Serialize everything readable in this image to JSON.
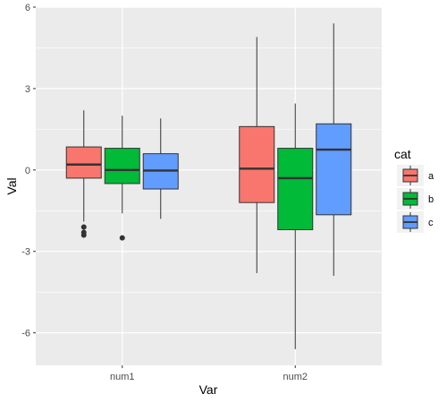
{
  "chart_data": {
    "type": "boxplot",
    "xlabel": "Var",
    "ylabel": "Val",
    "categories": [
      "num1",
      "num2"
    ],
    "ylim": [
      -7.2,
      6
    ],
    "y_ticks": [
      -6,
      -3,
      0,
      3,
      6
    ],
    "y_tick_labels": [
      "-6",
      "-3",
      "0",
      "3",
      "6"
    ],
    "grid": true,
    "legend": {
      "title": "cat",
      "position": "right",
      "entries": [
        "a",
        "b",
        "c"
      ]
    },
    "colors": {
      "a": "#F8766D",
      "b": "#00BA38",
      "c": "#619CFF",
      "panel": "#EBEBEB",
      "grid": "#FFFFFF",
      "outline": "#333333"
    },
    "series": [
      {
        "name": "a",
        "boxes": [
          {
            "category": "num1",
            "whisker_low": -1.9,
            "q1": -0.3,
            "median": 0.2,
            "q3": 0.85,
            "whisker_high": 2.2,
            "outliers": [
              -2.1,
              -2.3,
              -2.4
            ]
          },
          {
            "category": "num2",
            "whisker_low": -3.8,
            "q1": -1.2,
            "median": 0.05,
            "q3": 1.6,
            "whisker_high": 4.9,
            "outliers": []
          }
        ]
      },
      {
        "name": "b",
        "boxes": [
          {
            "category": "num1",
            "whisker_low": -1.6,
            "q1": -0.5,
            "median": 0.0,
            "q3": 0.8,
            "whisker_high": 2.0,
            "outliers": [
              -2.5
            ]
          },
          {
            "category": "num2",
            "whisker_low": -6.6,
            "q1": -2.2,
            "median": -0.3,
            "q3": 0.8,
            "whisker_high": 2.45,
            "outliers": []
          }
        ]
      },
      {
        "name": "c",
        "boxes": [
          {
            "category": "num1",
            "whisker_low": -1.8,
            "q1": -0.7,
            "median": -0.02,
            "q3": 0.6,
            "whisker_high": 1.9,
            "outliers": []
          },
          {
            "category": "num2",
            "whisker_low": -3.9,
            "q1": -1.65,
            "median": 0.75,
            "q3": 1.7,
            "whisker_high": 5.4,
            "outliers": []
          }
        ]
      }
    ]
  }
}
